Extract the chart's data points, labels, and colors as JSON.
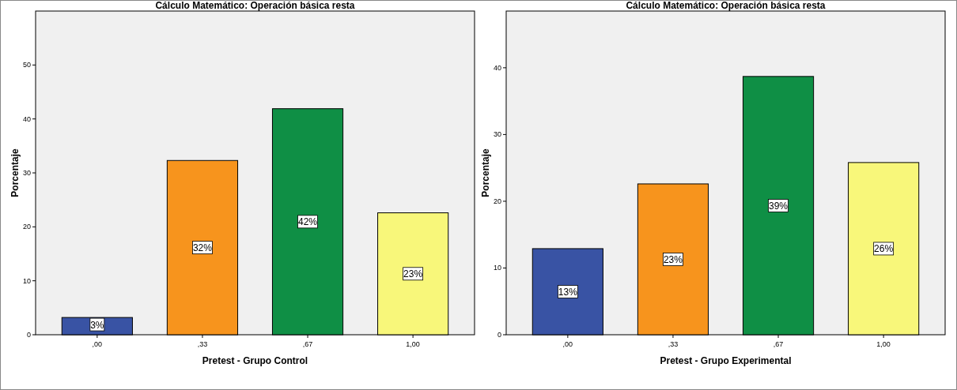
{
  "chart_data": [
    {
      "type": "bar",
      "title": "Cálculo Matemático: Operación básica resta",
      "xlabel": "Pretest - Grupo Control",
      "ylabel": "Porcentaje",
      "categories": [
        ",00",
        ",33",
        ",67",
        "1,00"
      ],
      "values": [
        3.2,
        32.3,
        41.9,
        22.6
      ],
      "colors": [
        "#3953a4",
        "#f7941d",
        "#0f8f45",
        "#f8f77a"
      ],
      "value_labels": [
        "3%",
        "32%",
        "42%",
        "23%"
      ],
      "ylim": [
        0,
        60
      ],
      "yticks": [
        0,
        10,
        20,
        30,
        40,
        50
      ]
    },
    {
      "type": "bar",
      "title": "Cálculo Matemático: Operación básica resta",
      "xlabel": "Pretest - Grupo Experimental",
      "ylabel": "Porcentaje",
      "categories": [
        ",00",
        ",33",
        ",67",
        "1,00"
      ],
      "values": [
        12.9,
        22.6,
        38.7,
        25.8
      ],
      "colors": [
        "#3953a4",
        "#f7941d",
        "#0f8f45",
        "#f8f77a"
      ],
      "value_labels": [
        "13%",
        "23%",
        "39%",
        "26%"
      ],
      "ylim": [
        0,
        48.5
      ],
      "yticks": [
        0,
        10,
        20,
        30,
        40
      ]
    }
  ]
}
